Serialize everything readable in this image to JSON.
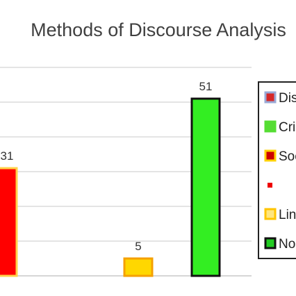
{
  "chart_data": {
    "type": "bar",
    "title": "Methods of Discourse Analysis",
    "ylim": [
      0,
      60
    ],
    "grid": true,
    "legend_position": "right",
    "bars": [
      {
        "label": "31",
        "value": 31,
        "fill": "#ff0000",
        "stroke": "#ffd24a"
      },
      {
        "label": "5",
        "value": 5,
        "fill": "#ffd700",
        "stroke": "#f5a000"
      },
      {
        "label": "51",
        "value": 51,
        "fill": "#33ee22",
        "stroke": "#111111"
      }
    ],
    "legend": [
      {
        "text": "Dis",
        "fill": "#d62828",
        "stroke": "#9aa9d6",
        "marker": "box"
      },
      {
        "text": "Cri",
        "fill": "#55dd33",
        "stroke": "#55dd33",
        "marker": "box"
      },
      {
        "text": "Soc",
        "fill": "#cc0000",
        "stroke": "#ffd200",
        "marker": "box"
      },
      {
        "text": "",
        "fill": "#ee0000",
        "stroke": "#ee0000",
        "marker": "dot"
      },
      {
        "text": "Lin",
        "fill": "#ffe680",
        "stroke": "#ffc400",
        "marker": "box"
      },
      {
        "text": "No",
        "fill": "#22cc22",
        "stroke": "#111111",
        "marker": "box"
      }
    ]
  }
}
